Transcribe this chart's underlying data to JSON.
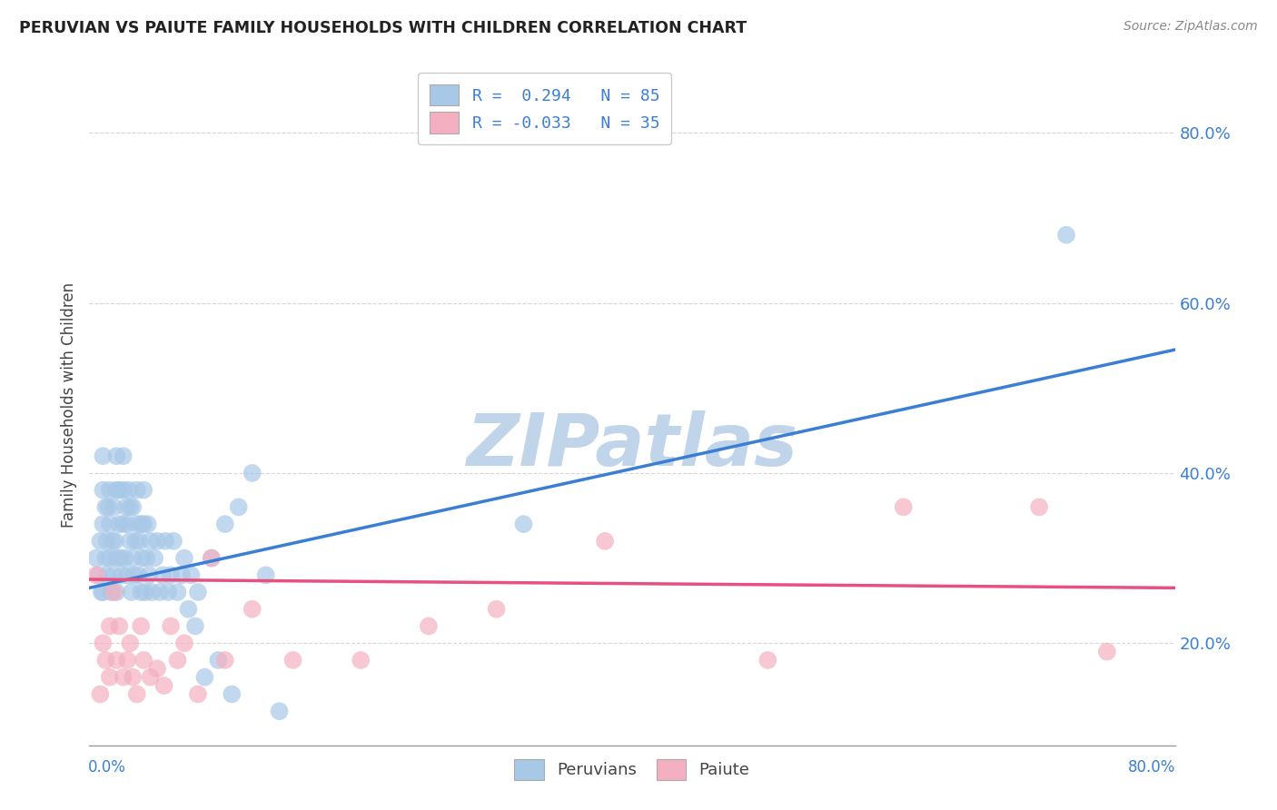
{
  "title": "PERUVIAN VS PAIUTE FAMILY HOUSEHOLDS WITH CHILDREN CORRELATION CHART",
  "source_text": "Source: ZipAtlas.com",
  "ylabel": "Family Households with Children",
  "ytick_values": [
    0.2,
    0.4,
    0.6,
    0.8
  ],
  "xlim": [
    0.0,
    0.8
  ],
  "ylim": [
    0.08,
    0.88
  ],
  "legend_r_blue": "0.294",
  "legend_n_blue": "85",
  "legend_r_pink": "-0.033",
  "legend_n_pink": "35",
  "blue_color": "#a8c8e8",
  "pink_color": "#f4b0c0",
  "blue_line_color": "#3a7fd4",
  "pink_line_color": "#e85080",
  "watermark": "ZIPatlas",
  "watermark_color": "#c0d4ea",
  "blue_trend_start_y": 0.265,
  "blue_trend_end_y": 0.545,
  "pink_trend_start_y": 0.275,
  "pink_trend_end_y": 0.265,
  "blue_points_x": [
    0.005,
    0.007,
    0.008,
    0.009,
    0.01,
    0.01,
    0.01,
    0.01,
    0.012,
    0.012,
    0.013,
    0.013,
    0.014,
    0.015,
    0.015,
    0.015,
    0.016,
    0.017,
    0.018,
    0.018,
    0.019,
    0.02,
    0.02,
    0.02,
    0.02,
    0.022,
    0.022,
    0.023,
    0.024,
    0.025,
    0.025,
    0.025,
    0.026,
    0.027,
    0.028,
    0.028,
    0.029,
    0.03,
    0.03,
    0.031,
    0.032,
    0.032,
    0.033,
    0.034,
    0.035,
    0.035,
    0.036,
    0.037,
    0.038,
    0.038,
    0.039,
    0.04,
    0.04,
    0.041,
    0.042,
    0.043,
    0.044,
    0.045,
    0.046,
    0.048,
    0.05,
    0.052,
    0.054,
    0.056,
    0.058,
    0.06,
    0.062,
    0.065,
    0.068,
    0.07,
    0.073,
    0.075,
    0.078,
    0.08,
    0.085,
    0.09,
    0.095,
    0.1,
    0.105,
    0.11,
    0.12,
    0.13,
    0.14,
    0.32,
    0.72
  ],
  "blue_points_y": [
    0.3,
    0.28,
    0.32,
    0.26,
    0.34,
    0.38,
    0.42,
    0.26,
    0.3,
    0.36,
    0.28,
    0.32,
    0.36,
    0.3,
    0.34,
    0.38,
    0.26,
    0.32,
    0.28,
    0.36,
    0.32,
    0.38,
    0.42,
    0.3,
    0.26,
    0.34,
    0.38,
    0.3,
    0.28,
    0.34,
    0.38,
    0.42,
    0.3,
    0.36,
    0.28,
    0.34,
    0.38,
    0.32,
    0.36,
    0.26,
    0.3,
    0.36,
    0.28,
    0.32,
    0.34,
    0.38,
    0.28,
    0.32,
    0.26,
    0.34,
    0.3,
    0.34,
    0.38,
    0.26,
    0.3,
    0.34,
    0.28,
    0.32,
    0.26,
    0.3,
    0.32,
    0.26,
    0.28,
    0.32,
    0.26,
    0.28,
    0.32,
    0.26,
    0.28,
    0.3,
    0.24,
    0.28,
    0.22,
    0.26,
    0.16,
    0.3,
    0.18,
    0.34,
    0.14,
    0.36,
    0.4,
    0.28,
    0.12,
    0.34,
    0.68
  ],
  "pink_points_x": [
    0.005,
    0.008,
    0.01,
    0.012,
    0.015,
    0.015,
    0.018,
    0.02,
    0.022,
    0.025,
    0.028,
    0.03,
    0.032,
    0.035,
    0.038,
    0.04,
    0.045,
    0.05,
    0.055,
    0.06,
    0.065,
    0.07,
    0.08,
    0.09,
    0.1,
    0.12,
    0.15,
    0.2,
    0.25,
    0.3,
    0.38,
    0.5,
    0.6,
    0.7,
    0.75
  ],
  "pink_points_y": [
    0.28,
    0.14,
    0.2,
    0.18,
    0.22,
    0.16,
    0.26,
    0.18,
    0.22,
    0.16,
    0.18,
    0.2,
    0.16,
    0.14,
    0.22,
    0.18,
    0.16,
    0.17,
    0.15,
    0.22,
    0.18,
    0.2,
    0.14,
    0.3,
    0.18,
    0.24,
    0.18,
    0.18,
    0.22,
    0.24,
    0.32,
    0.18,
    0.36,
    0.36,
    0.19
  ]
}
